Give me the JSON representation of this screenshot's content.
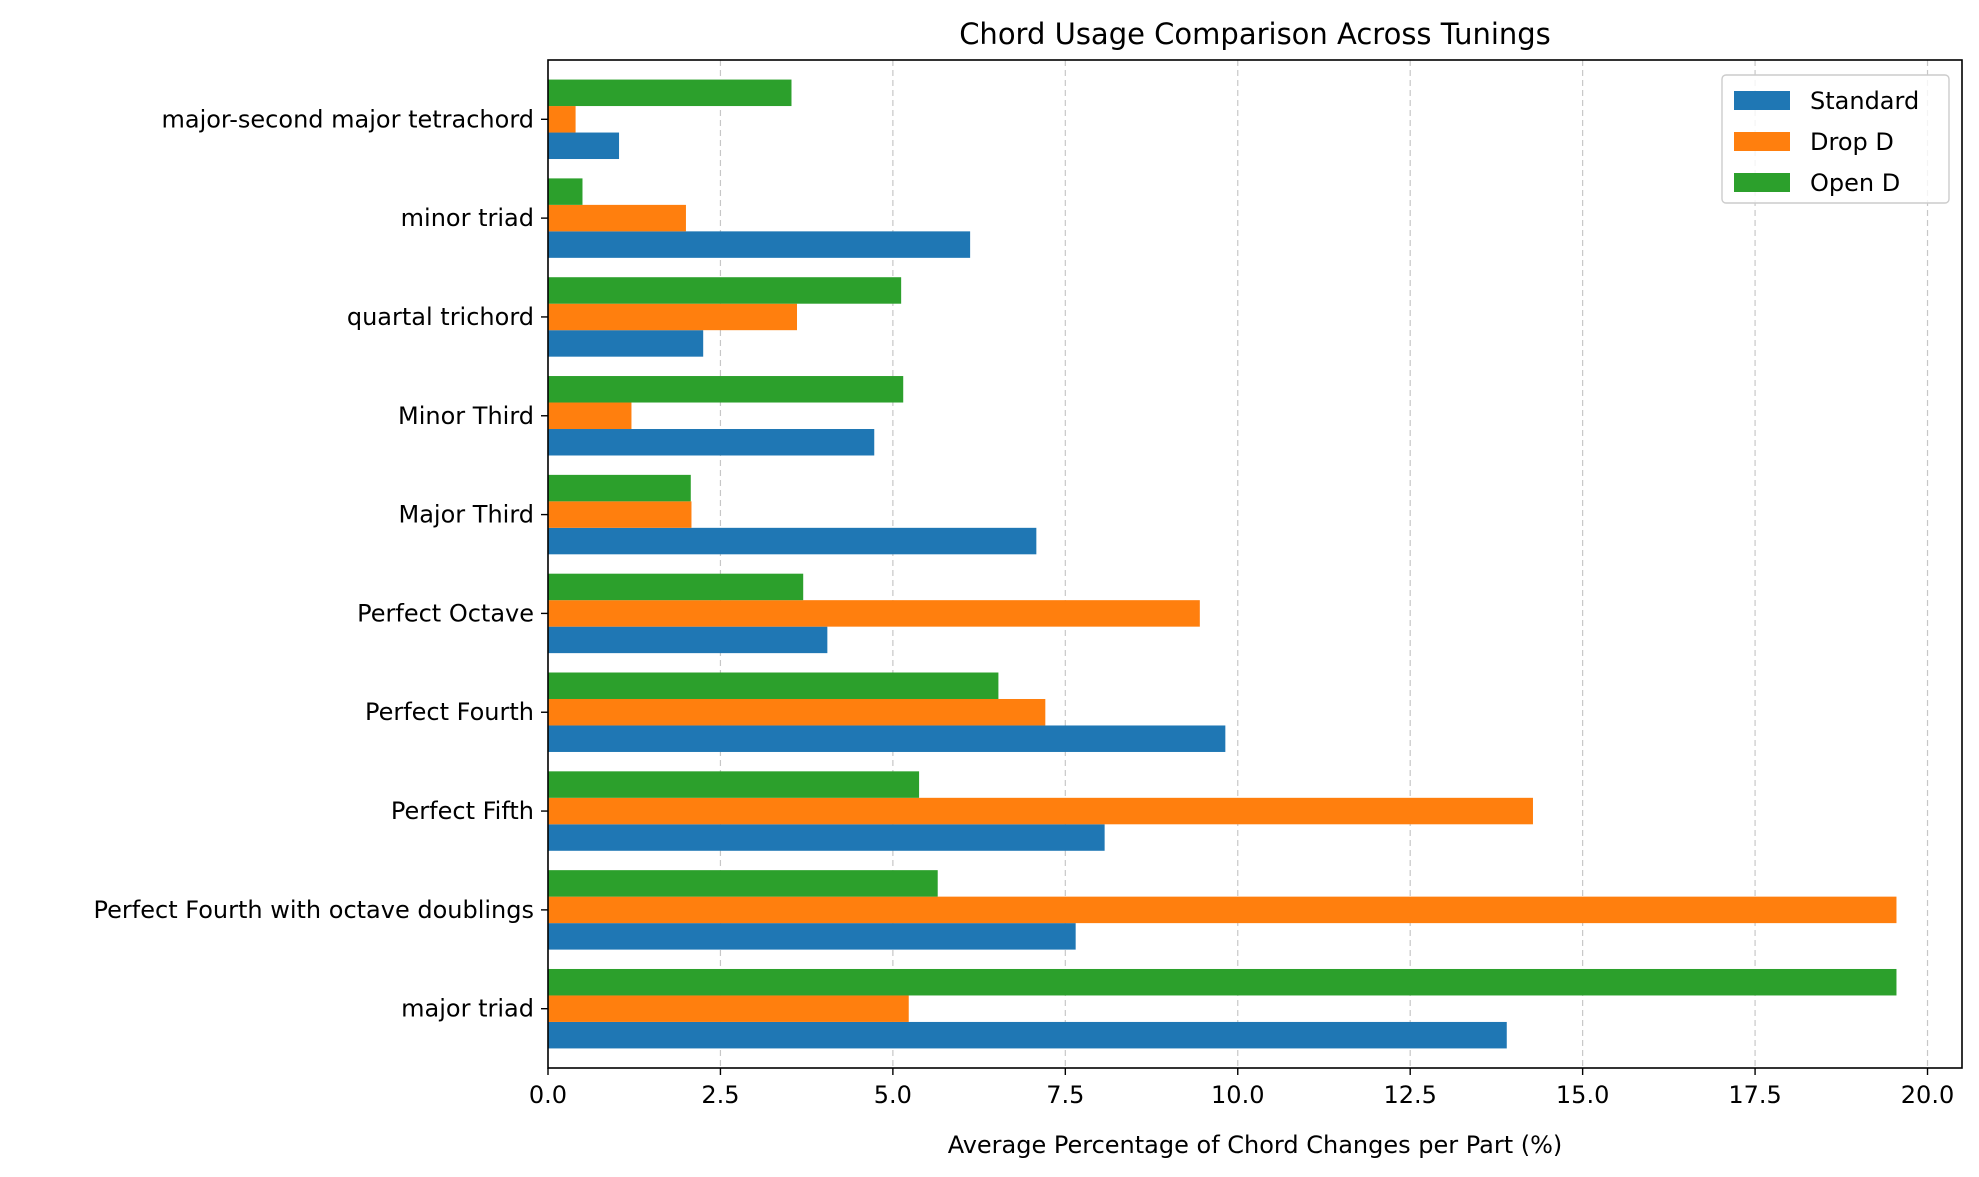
{
  "chart_data": {
    "type": "bar",
    "orientation": "horizontal",
    "title": "Chord Usage Comparison Across Tunings",
    "xlabel": "Average Percentage of Chord Changes per Part (%)",
    "ylabel": "",
    "xlim": [
      0,
      20.5
    ],
    "xticks": [
      "0.0",
      "2.5",
      "5.0",
      "7.5",
      "10.0",
      "12.5",
      "15.0",
      "17.5",
      "20.0"
    ],
    "grid": "x-dashed",
    "legend_position": "top-right",
    "categories": [
      "major triad",
      "Perfect Fourth with octave doublings",
      "Perfect Fifth",
      "Perfect Fourth",
      "Perfect Octave",
      "Major Third",
      "Minor Third",
      "quartal trichord",
      "minor triad",
      "major-second major tetrachord"
    ],
    "series": [
      {
        "name": "Standard",
        "color": "#1f77b4",
        "values": [
          13.9,
          7.65,
          8.07,
          9.82,
          4.05,
          7.08,
          4.73,
          2.25,
          6.12,
          1.03
        ]
      },
      {
        "name": "Drop D",
        "color": "#ff7f0e",
        "values": [
          5.23,
          19.55,
          14.28,
          7.21,
          9.45,
          2.08,
          1.21,
          3.61,
          2.0,
          0.4
        ]
      },
      {
        "name": "Open D",
        "color": "#2ca02c",
        "values": [
          19.55,
          5.65,
          5.38,
          6.53,
          3.7,
          2.07,
          5.15,
          5.12,
          0.5,
          3.53
        ]
      }
    ]
  }
}
